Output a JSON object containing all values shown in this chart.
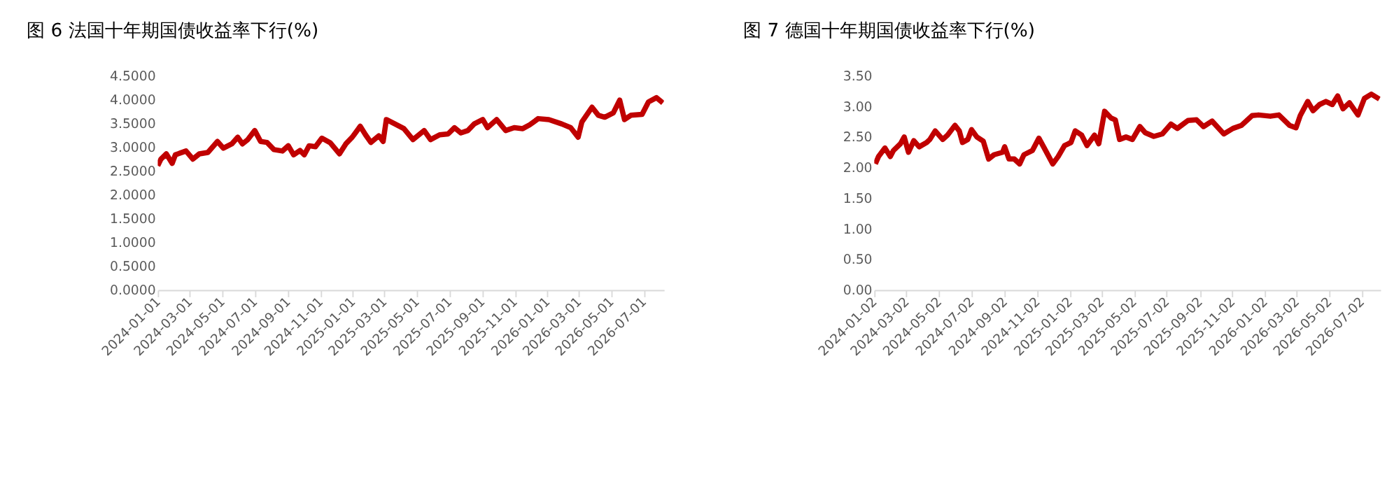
{
  "chart_data": [
    {
      "type": "line",
      "title": "图 6  法国十年期国债收益率下行(%)",
      "grid": false,
      "marker": "none",
      "line_style": "solid",
      "xlim": [
        "2024-01-01",
        "2026-08-08"
      ],
      "xticks": [
        "2024-01-01",
        "2024-03-01",
        "2024-05-01",
        "2024-07-01",
        "2024-09-01",
        "2024-11-01",
        "2025-01-01",
        "2025-03-01",
        "2025-05-01",
        "2025-07-01",
        "2025-09-01",
        "2025-11-01",
        "2026-01-01",
        "2026-03-01",
        "2026-05-01",
        "2026-07-01"
      ],
      "ylim": [
        0,
        4.5
      ],
      "yticks": [
        {
          "value": 0,
          "label": "0.0000"
        },
        {
          "value": 0.5,
          "label": "0.5000"
        },
        {
          "value": 1,
          "label": "1.0000"
        },
        {
          "value": 1.5,
          "label": "1.5000"
        },
        {
          "value": 2,
          "label": "2.0000"
        },
        {
          "value": 2.5,
          "label": "2.5000"
        },
        {
          "value": 3,
          "label": "3.0000"
        },
        {
          "value": 3.5,
          "label": "3.5000"
        },
        {
          "value": 4,
          "label": "4.0000"
        },
        {
          "value": 4.5,
          "label": "4.5000"
        }
      ],
      "series": [
        {
          "color": "#c00000",
          "x": [
            "2024-01-01",
            "2024-01-07",
            "2024-01-17",
            "2024-01-28",
            "2024-02-03",
            "2024-02-23",
            "2024-03-07",
            "2024-03-19",
            "2024-04-04",
            "2024-04-22",
            "2024-05-03",
            "2024-05-19",
            "2024-05-30",
            "2024-06-08",
            "2024-06-18",
            "2024-07-01",
            "2024-07-12",
            "2024-07-24",
            "2024-08-06",
            "2024-08-22",
            "2024-09-02",
            "2024-09-12",
            "2024-09-24",
            "2024-10-02",
            "2024-10-11",
            "2024-10-23",
            "2024-11-04",
            "2024-11-20",
            "2024-12-07",
            "2024-12-19",
            "2024-12-31",
            "2025-01-15",
            "2025-01-25",
            "2025-02-04",
            "2025-02-19",
            "2025-02-27",
            "2025-03-05",
            "2025-03-21",
            "2025-04-07",
            "2025-04-24",
            "2025-05-15",
            "2025-05-27",
            "2025-06-13",
            "2025-06-29",
            "2025-07-11",
            "2025-07-23",
            "2025-08-05",
            "2025-08-17",
            "2025-09-02",
            "2025-09-11",
            "2025-09-28",
            "2025-10-15",
            "2025-10-31",
            "2025-11-16",
            "2025-11-29",
            "2025-12-15",
            "2026-01-04",
            "2026-01-28",
            "2026-02-14",
            "2026-02-28",
            "2026-03-07",
            "2026-03-26",
            "2026-04-07",
            "2026-04-19",
            "2026-05-05",
            "2026-05-17",
            "2026-05-26",
            "2026-06-07",
            "2026-06-28",
            "2026-07-10",
            "2026-07-25",
            "2026-08-06"
          ],
          "values": [
            2.61,
            2.75,
            2.86,
            2.66,
            2.84,
            2.92,
            2.75,
            2.86,
            2.89,
            3.12,
            2.98,
            3.07,
            3.21,
            3.07,
            3.16,
            3.35,
            3.12,
            3.1,
            2.95,
            2.92,
            3.03,
            2.84,
            2.93,
            2.84,
            3.03,
            3.01,
            3.19,
            3.09,
            2.86,
            3.07,
            3.21,
            3.44,
            3.26,
            3.1,
            3.24,
            3.12,
            3.58,
            3.49,
            3.39,
            3.16,
            3.35,
            3.16,
            3.26,
            3.28,
            3.41,
            3.3,
            3.35,
            3.49,
            3.58,
            3.41,
            3.58,
            3.35,
            3.41,
            3.39,
            3.47,
            3.6,
            3.58,
            3.49,
            3.41,
            3.21,
            3.53,
            3.84,
            3.67,
            3.63,
            3.72,
            3.99,
            3.58,
            3.67,
            3.69,
            3.95,
            4.04,
            3.93
          ]
        }
      ]
    },
    {
      "type": "line",
      "title": "图 7  德国十年期国债收益率下行(%)",
      "grid": false,
      "marker": "none",
      "line_style": "solid",
      "xlim": [
        "2024-01-02",
        "2026-08-06"
      ],
      "xticks": [
        "2024-01-02",
        "2024-03-02",
        "2024-05-02",
        "2024-07-02",
        "2024-09-02",
        "2024-11-02",
        "2025-01-02",
        "2025-03-02",
        "2025-05-02",
        "2025-07-02",
        "2025-09-02",
        "2025-11-02",
        "2026-01-02",
        "2026-03-02",
        "2026-05-02",
        "2026-07-02"
      ],
      "ylim": [
        0,
        3.5
      ],
      "yticks": [
        {
          "value": 0,
          "label": "0.00"
        },
        {
          "value": 0.5,
          "label": "0.50"
        },
        {
          "value": 1,
          "label": "1.00"
        },
        {
          "value": 1.5,
          "label": "1.50"
        },
        {
          "value": 2,
          "label": "2.00"
        },
        {
          "value": 2.5,
          "label": "2.50"
        },
        {
          "value": 3,
          "label": "3.00"
        },
        {
          "value": 3.5,
          "label": "3.50"
        }
      ],
      "series": [
        {
          "color": "#c00000",
          "x": [
            "2024-01-04",
            "2024-01-10",
            "2024-01-22",
            "2024-02-01",
            "2024-02-07",
            "2024-02-20",
            "2024-02-27",
            "2024-03-06",
            "2024-03-16",
            "2024-03-26",
            "2024-04-09",
            "2024-04-15",
            "2024-04-25",
            "2024-05-09",
            "2024-05-18",
            "2024-06-01",
            "2024-06-09",
            "2024-06-15",
            "2024-06-25",
            "2024-07-02",
            "2024-07-12",
            "2024-07-24",
            "2024-08-03",
            "2024-08-13",
            "2024-08-29",
            "2024-09-02",
            "2024-09-10",
            "2024-09-20",
            "2024-09-30",
            "2024-10-08",
            "2024-10-24",
            "2024-11-05",
            "2024-11-15",
            "2024-12-01",
            "2024-12-11",
            "2024-12-23",
            "2025-01-04",
            "2025-01-12",
            "2025-01-24",
            "2025-02-03",
            "2025-02-17",
            "2025-02-25",
            "2025-03-08",
            "2025-03-20",
            "2025-03-28",
            "2025-04-05",
            "2025-04-17",
            "2025-04-29",
            "2025-05-13",
            "2025-05-23",
            "2025-06-08",
            "2025-06-24",
            "2025-07-10",
            "2025-07-22",
            "2025-08-11",
            "2025-08-27",
            "2025-09-09",
            "2025-09-25",
            "2025-10-17",
            "2025-11-03",
            "2025-11-19",
            "2025-12-09",
            "2025-12-21",
            "2026-01-12",
            "2026-01-28",
            "2026-02-17",
            "2026-03-01",
            "2026-03-09",
            "2026-03-23",
            "2026-04-02",
            "2026-04-14",
            "2026-04-26",
            "2026-05-08",
            "2026-05-18",
            "2026-05-28",
            "2026-06-09",
            "2026-06-25",
            "2026-07-07",
            "2026-07-20",
            "2026-08-04"
          ],
          "values": [
            2.06,
            2.18,
            2.32,
            2.18,
            2.28,
            2.39,
            2.5,
            2.25,
            2.44,
            2.34,
            2.41,
            2.46,
            2.6,
            2.46,
            2.53,
            2.69,
            2.6,
            2.41,
            2.46,
            2.62,
            2.5,
            2.43,
            2.14,
            2.21,
            2.25,
            2.34,
            2.14,
            2.14,
            2.06,
            2.21,
            2.28,
            2.48,
            2.32,
            2.06,
            2.18,
            2.36,
            2.41,
            2.6,
            2.53,
            2.36,
            2.53,
            2.39,
            2.92,
            2.81,
            2.78,
            2.46,
            2.5,
            2.46,
            2.67,
            2.57,
            2.51,
            2.55,
            2.71,
            2.64,
            2.77,
            2.78,
            2.67,
            2.76,
            2.55,
            2.64,
            2.69,
            2.85,
            2.86,
            2.84,
            2.86,
            2.69,
            2.65,
            2.85,
            3.08,
            2.93,
            3.03,
            3.08,
            3.03,
            3.17,
            2.96,
            3.06,
            2.86,
            3.13,
            3.2,
            3.12
          ]
        }
      ]
    }
  ]
}
